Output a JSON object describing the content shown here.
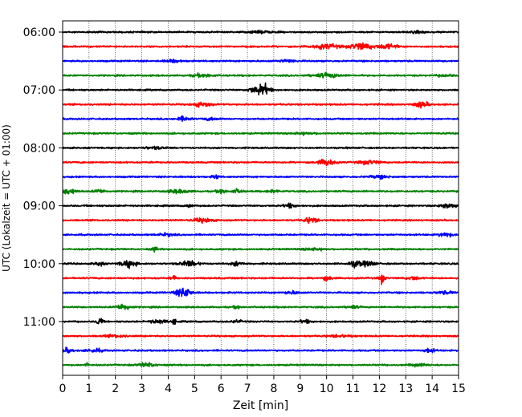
{
  "chart_data": {
    "type": "line",
    "title": "",
    "xlabel": "Zeit  [min]",
    "ylabel": "UTC (Lokalzeit = UTC + 01:00)",
    "xlim": [
      0,
      15
    ],
    "x_ticks": [
      "0",
      "1",
      "2",
      "3",
      "4",
      "5",
      "6",
      "7",
      "8",
      "9",
      "10",
      "11",
      "12",
      "13",
      "14",
      "15"
    ],
    "y_ticks": [
      {
        "label": "06:00",
        "row": 0
      },
      {
        "label": "07:00",
        "row": 4
      },
      {
        "label": "08:00",
        "row": 8
      },
      {
        "label": "09:00",
        "row": 12
      },
      {
        "label": "10:00",
        "row": 16
      },
      {
        "label": "11:00",
        "row": 20
      }
    ],
    "grid": "vertical dotted",
    "trace_colors": [
      "#000000",
      "#ff0000",
      "#0000ff",
      "#008000"
    ],
    "rows_per_hour": 4,
    "minutes_per_row": 15,
    "rows": 24,
    "traces": [
      {
        "row": 0,
        "color": "#000000",
        "bursts": [
          [
            7.5,
            0.4,
            0.4
          ],
          [
            13.5,
            0.3,
            0.4
          ]
        ]
      },
      {
        "row": 1,
        "color": "#ff0000",
        "bursts": [
          [
            10.0,
            0.5,
            0.9
          ],
          [
            11.3,
            0.4,
            1.3
          ],
          [
            12.3,
            0.4,
            0.9
          ]
        ]
      },
      {
        "row": 2,
        "color": "#0000ff",
        "bursts": [
          [
            4.2,
            0.3,
            0.5
          ],
          [
            8.5,
            0.4,
            0.4
          ]
        ]
      },
      {
        "row": 3,
        "color": "#008000",
        "bursts": [
          [
            5.3,
            0.4,
            0.6
          ],
          [
            10.0,
            0.5,
            0.8
          ],
          [
            14.5,
            0.3,
            0.4
          ]
        ]
      },
      {
        "row": 4,
        "color": "#000000",
        "bursts": [
          [
            7.6,
            0.25,
            2.2
          ],
          [
            7.2,
            0.2,
            0.9
          ]
        ]
      },
      {
        "row": 5,
        "color": "#ff0000",
        "bursts": [
          [
            5.3,
            0.3,
            0.9
          ],
          [
            13.6,
            0.25,
            1.1
          ]
        ]
      },
      {
        "row": 6,
        "color": "#0000ff",
        "bursts": [
          [
            4.6,
            0.25,
            0.8
          ],
          [
            5.6,
            0.3,
            0.4
          ]
        ]
      },
      {
        "row": 7,
        "color": "#008000",
        "bursts": [
          [
            9.2,
            0.4,
            0.4
          ]
        ]
      },
      {
        "row": 8,
        "color": "#000000",
        "bursts": [
          [
            3.5,
            0.4,
            0.4
          ]
        ]
      },
      {
        "row": 9,
        "color": "#ff0000",
        "bursts": [
          [
            10.0,
            0.3,
            1.2
          ],
          [
            11.6,
            0.4,
            0.7
          ]
        ]
      },
      {
        "row": 10,
        "color": "#0000ff",
        "bursts": [
          [
            5.8,
            0.12,
            0.8
          ],
          [
            12.0,
            0.4,
            0.5
          ]
        ]
      },
      {
        "row": 11,
        "color": "#008000",
        "bursts": [
          [
            0.25,
            0.25,
            1.1
          ],
          [
            1.4,
            0.2,
            0.7
          ],
          [
            4.4,
            0.4,
            0.7
          ],
          [
            6.0,
            0.15,
            1.0
          ],
          [
            6.6,
            0.2,
            0.7
          ],
          [
            8.0,
            0.2,
            0.6
          ]
        ]
      },
      {
        "row": 12,
        "color": "#000000",
        "bursts": [
          [
            4.8,
            0.12,
            0.6
          ],
          [
            8.6,
            0.2,
            0.8
          ],
          [
            14.6,
            0.3,
            0.9
          ]
        ]
      },
      {
        "row": 13,
        "color": "#ff0000",
        "bursts": [
          [
            5.3,
            0.35,
            0.8
          ],
          [
            9.4,
            0.25,
            1.0
          ]
        ]
      },
      {
        "row": 14,
        "color": "#0000ff",
        "bursts": [
          [
            3.9,
            0.3,
            0.5
          ],
          [
            14.5,
            0.25,
            0.9
          ]
        ]
      },
      {
        "row": 15,
        "color": "#008000",
        "bursts": [
          [
            3.5,
            0.1,
            0.9
          ],
          [
            9.5,
            0.4,
            0.4
          ]
        ]
      },
      {
        "row": 16,
        "color": "#000000",
        "bursts": [
          [
            1.4,
            0.15,
            0.8
          ],
          [
            2.5,
            0.3,
            1.3
          ],
          [
            4.8,
            0.35,
            1.1
          ],
          [
            6.6,
            0.2,
            0.8
          ],
          [
            11.1,
            0.25,
            1.2
          ],
          [
            11.6,
            0.25,
            0.9
          ]
        ]
      },
      {
        "row": 17,
        "color": "#ff0000",
        "bursts": [
          [
            4.2,
            0.1,
            1.0
          ],
          [
            10.0,
            0.2,
            0.7
          ],
          [
            12.1,
            0.1,
            2.0
          ],
          [
            13.3,
            0.2,
            0.7
          ]
        ]
      },
      {
        "row": 18,
        "color": "#0000ff",
        "bursts": [
          [
            4.5,
            0.3,
            1.1
          ],
          [
            4.7,
            0.15,
            1.4
          ],
          [
            8.7,
            0.3,
            0.5
          ],
          [
            14.5,
            0.3,
            0.5
          ]
        ]
      },
      {
        "row": 19,
        "color": "#008000",
        "bursts": [
          [
            2.3,
            0.25,
            1.2
          ],
          [
            6.6,
            0.1,
            0.9
          ],
          [
            11.0,
            0.2,
            0.6
          ]
        ]
      },
      {
        "row": 20,
        "color": "#000000",
        "bursts": [
          [
            1.4,
            0.1,
            1.8
          ],
          [
            3.6,
            0.3,
            0.7
          ],
          [
            4.2,
            0.1,
            1.1
          ],
          [
            6.6,
            0.2,
            0.5
          ],
          [
            9.2,
            0.2,
            0.6
          ]
        ]
      },
      {
        "row": 21,
        "color": "#ff0000",
        "bursts": [
          [
            2.0,
            0.4,
            0.4
          ],
          [
            10.5,
            0.4,
            0.4
          ]
        ]
      },
      {
        "row": 22,
        "color": "#0000ff",
        "bursts": [
          [
            0.2,
            0.2,
            0.8
          ],
          [
            1.2,
            0.3,
            0.6
          ],
          [
            13.9,
            0.2,
            0.8
          ]
        ]
      },
      {
        "row": 23,
        "color": "#008000",
        "bursts": [
          [
            0.9,
            0.1,
            0.7
          ],
          [
            3.2,
            0.3,
            0.8
          ],
          [
            13.5,
            0.3,
            0.5
          ]
        ]
      }
    ]
  }
}
